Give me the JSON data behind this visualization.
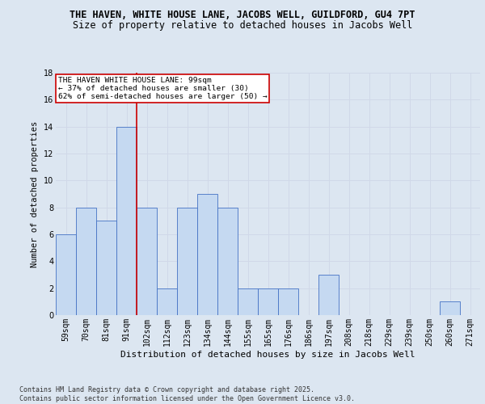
{
  "title1": "THE HAVEN, WHITE HOUSE LANE, JACOBS WELL, GUILDFORD, GU4 7PT",
  "title2": "Size of property relative to detached houses in Jacobs Well",
  "xlabel": "Distribution of detached houses by size in Jacobs Well",
  "ylabel": "Number of detached properties",
  "categories": [
    "59sqm",
    "70sqm",
    "81sqm",
    "91sqm",
    "102sqm",
    "112sqm",
    "123sqm",
    "134sqm",
    "144sqm",
    "155sqm",
    "165sqm",
    "176sqm",
    "186sqm",
    "197sqm",
    "208sqm",
    "218sqm",
    "229sqm",
    "239sqm",
    "250sqm",
    "260sqm",
    "271sqm"
  ],
  "values": [
    6,
    8,
    7,
    14,
    8,
    2,
    8,
    9,
    8,
    2,
    2,
    2,
    0,
    3,
    0,
    0,
    0,
    0,
    0,
    1,
    0
  ],
  "bar_color": "#c5d9f1",
  "bar_edge_color": "#4472c4",
  "grid_color": "#d0d8e8",
  "background_color": "#dce6f1",
  "ref_line_index": 4,
  "ref_line_color": "#cc0000",
  "annotation_text": "THE HAVEN WHITE HOUSE LANE: 99sqm\n← 37% of detached houses are smaller (30)\n62% of semi-detached houses are larger (50) →",
  "annotation_box_color": "#ffffff",
  "annotation_box_edge": "#cc0000",
  "ylim": [
    0,
    18
  ],
  "yticks": [
    0,
    2,
    4,
    6,
    8,
    10,
    12,
    14,
    16,
    18
  ],
  "footer": "Contains HM Land Registry data © Crown copyright and database right 2025.\nContains public sector information licensed under the Open Government Licence v3.0.",
  "title1_fontsize": 8.5,
  "title2_fontsize": 8.5,
  "xlabel_fontsize": 8,
  "ylabel_fontsize": 7.5,
  "tick_fontsize": 7,
  "annotation_fontsize": 6.8,
  "footer_fontsize": 6
}
